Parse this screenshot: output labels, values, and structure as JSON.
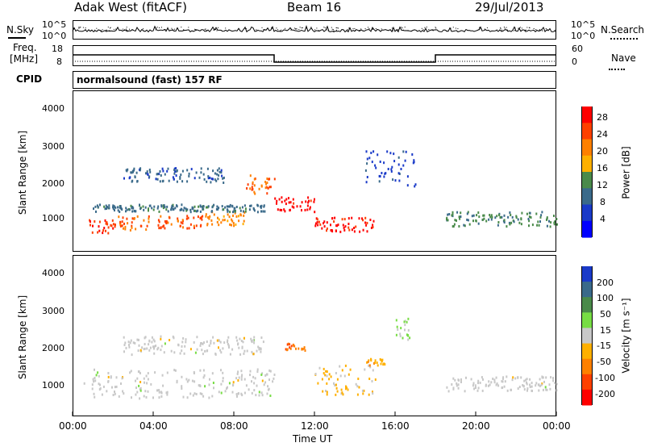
{
  "header": {
    "station": "Adak West (fitACF)",
    "beam": "Beam 16",
    "date": "29/Jul/2013"
  },
  "noise_panel": {
    "left_label": "N.Sky",
    "left_ticks": [
      "10^5",
      "10^0"
    ],
    "right_ticks": [
      "10^5",
      "10^0"
    ],
    "right_label": "N.Search"
  },
  "freq_panel": {
    "left_label_1": "Freq.",
    "left_label_2": "[MHz]",
    "left_ticks": [
      "18",
      "8"
    ],
    "right_ticks": [
      "60",
      "0"
    ],
    "right_label": "Nave",
    "freq_steps": [
      {
        "t_start": 0,
        "t_end": 10,
        "mhz": 13
      },
      {
        "t_start": 10,
        "t_end": 18,
        "mhz": 8.5
      },
      {
        "t_start": 18,
        "t_end": 24,
        "mhz": 13
      }
    ]
  },
  "cpid_panel": {
    "label": "CPID",
    "program": "normalsound (fast) 157 RF"
  },
  "power_panel": {
    "ylabel": "Slant Range [km]",
    "yticks": [
      "4000",
      "3000",
      "2000",
      "1000"
    ],
    "colorbar": {
      "label": "Power [dB]",
      "ticks": [
        "28",
        "24",
        "20",
        "16",
        "12",
        "8",
        "4"
      ],
      "colors": [
        "#ff0000",
        "#ff4000",
        "#ff8000",
        "#ffb000",
        "#4a8a4a",
        "#3a6a8a",
        "#1a3ac8",
        "#0000ff"
      ]
    }
  },
  "velocity_panel": {
    "ylabel": "Slant Range [km]",
    "yticks": [
      "4000",
      "3000",
      "2000",
      "1000"
    ],
    "colorbar": {
      "label": "Velocity [m s⁻¹]",
      "ticks": [
        "200",
        "100",
        "50",
        "15",
        "-15",
        "-50",
        "-100",
        "-200"
      ],
      "colors": [
        "#1a3ac8",
        "#3a6a8a",
        "#4a8a4a",
        "#77dd44",
        "#c8c8c8",
        "#ffb000",
        "#ff8000",
        "#ff4000",
        "#ff0000"
      ]
    }
  },
  "x_axis": {
    "ticks": [
      "00:00",
      "04:00",
      "08:00",
      "12:00",
      "16:00",
      "20:00",
      "00:00"
    ],
    "label": "Time UT"
  },
  "chart_data": {
    "type": "heatmap",
    "title": "Adak West (fitACF)",
    "subtitle": "Beam 16",
    "xlabel": "Time UT",
    "ylabel": "Slant Range [km]",
    "xlim": [
      0,
      24
    ],
    "ylim": [
      180,
      4600
    ],
    "power_scale": [
      0,
      30
    ],
    "velocity_scale": [
      -250,
      250
    ],
    "power_regions": [
      {
        "t0": 0.8,
        "t1": 2.2,
        "r0": 700,
        "r1": 1100,
        "v": 26
      },
      {
        "t0": 2.2,
        "t1": 3.8,
        "r0": 800,
        "r1": 1200,
        "v": 22
      },
      {
        "t0": 4.2,
        "t1": 6.5,
        "r0": 850,
        "r1": 1200,
        "v": 24
      },
      {
        "t0": 6.5,
        "t1": 8.5,
        "r0": 900,
        "r1": 1300,
        "v": 20
      },
      {
        "t0": 8.5,
        "t1": 10.0,
        "r0": 1800,
        "r1": 2300,
        "v": 22
      },
      {
        "t0": 10.0,
        "t1": 12.0,
        "r0": 1300,
        "r1": 1700,
        "v": 28
      },
      {
        "t0": 12.0,
        "t1": 15.0,
        "r0": 750,
        "r1": 1150,
        "v": 27
      },
      {
        "t0": 1.0,
        "t1": 9.5,
        "r0": 1300,
        "r1": 1500,
        "v": 10
      },
      {
        "t0": 2.5,
        "t1": 7.5,
        "r0": 2100,
        "r1": 2500,
        "v": 8
      },
      {
        "t0": 14.5,
        "t1": 17.0,
        "r0": 2000,
        "r1": 3000,
        "v": 6
      },
      {
        "t0": 18.5,
        "t1": 24.0,
        "r0": 900,
        "r1": 1300,
        "v": 12
      }
    ],
    "velocity_regions": [
      {
        "t0": 0.5,
        "t1": 10.0,
        "r0": 700,
        "r1": 1500,
        "v": 0
      },
      {
        "t0": 2.5,
        "t1": 9.5,
        "r0": 1900,
        "r1": 2400,
        "v": 0
      },
      {
        "t0": 10.5,
        "t1": 11.5,
        "r0": 2000,
        "r1": 2200,
        "v": -120
      },
      {
        "t0": 12.0,
        "t1": 15.0,
        "r0": 800,
        "r1": 1600,
        "v": -40
      },
      {
        "t0": 14.5,
        "t1": 15.5,
        "r0": 1600,
        "r1": 1800,
        "v": -60
      },
      {
        "t0": 16.0,
        "t1": 17.0,
        "r0": 2300,
        "r1": 2900,
        "v": 30
      },
      {
        "t0": 18.5,
        "t1": 24.0,
        "r0": 900,
        "r1": 1300,
        "v": 0
      }
    ]
  }
}
